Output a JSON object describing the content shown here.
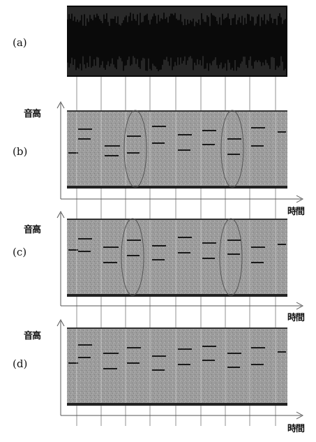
{
  "panels": [
    {
      "label": "(a)",
      "y_axis": "",
      "x_axis": ""
    },
    {
      "label": "(b)",
      "y_axis": "音高",
      "x_axis": "時間"
    },
    {
      "label": "(c)",
      "y_axis": "音高",
      "x_axis": "時間"
    },
    {
      "label": "(d)",
      "y_axis": "音高",
      "x_axis": "時間"
    }
  ],
  "colors": {
    "background": "#ffffff",
    "waveform": "#0a0a0a",
    "panel_fill": "#9a9a9a",
    "note_line": "#1a1a1a",
    "grid_line": "#ffffff",
    "axis": "#555555"
  }
}
